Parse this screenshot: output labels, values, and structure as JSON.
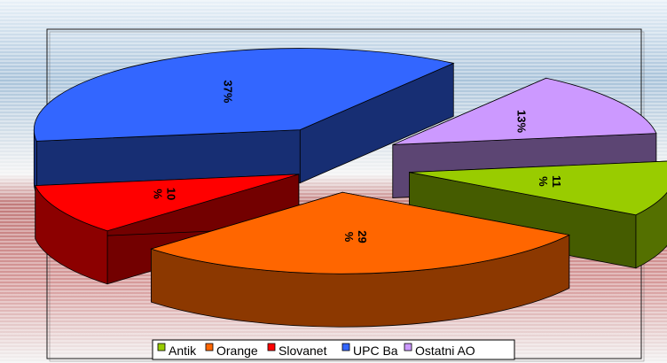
{
  "chart_data": {
    "type": "pie",
    "style": "3d-exploded",
    "categories": [
      "Antik",
      "Orange",
      "Slovanet",
      "UPC Ba",
      "Ostatni AO"
    ],
    "values": [
      11,
      29,
      10,
      37,
      13
    ],
    "data_labels": [
      "11",
      "29",
      "10",
      "37%",
      "13%"
    ],
    "data_label_units": [
      "%",
      "%",
      "%",
      "",
      ""
    ],
    "colors": {
      "Antik": "#99cc00",
      "Orange": "#ff6600",
      "Slovanet": "#ff0000",
      "UPC Ba": "#3366ff",
      "Ostatni AO": "#cc99ff"
    },
    "legend_position": "bottom",
    "background": "horizontal-stripes-blue-to-red"
  }
}
